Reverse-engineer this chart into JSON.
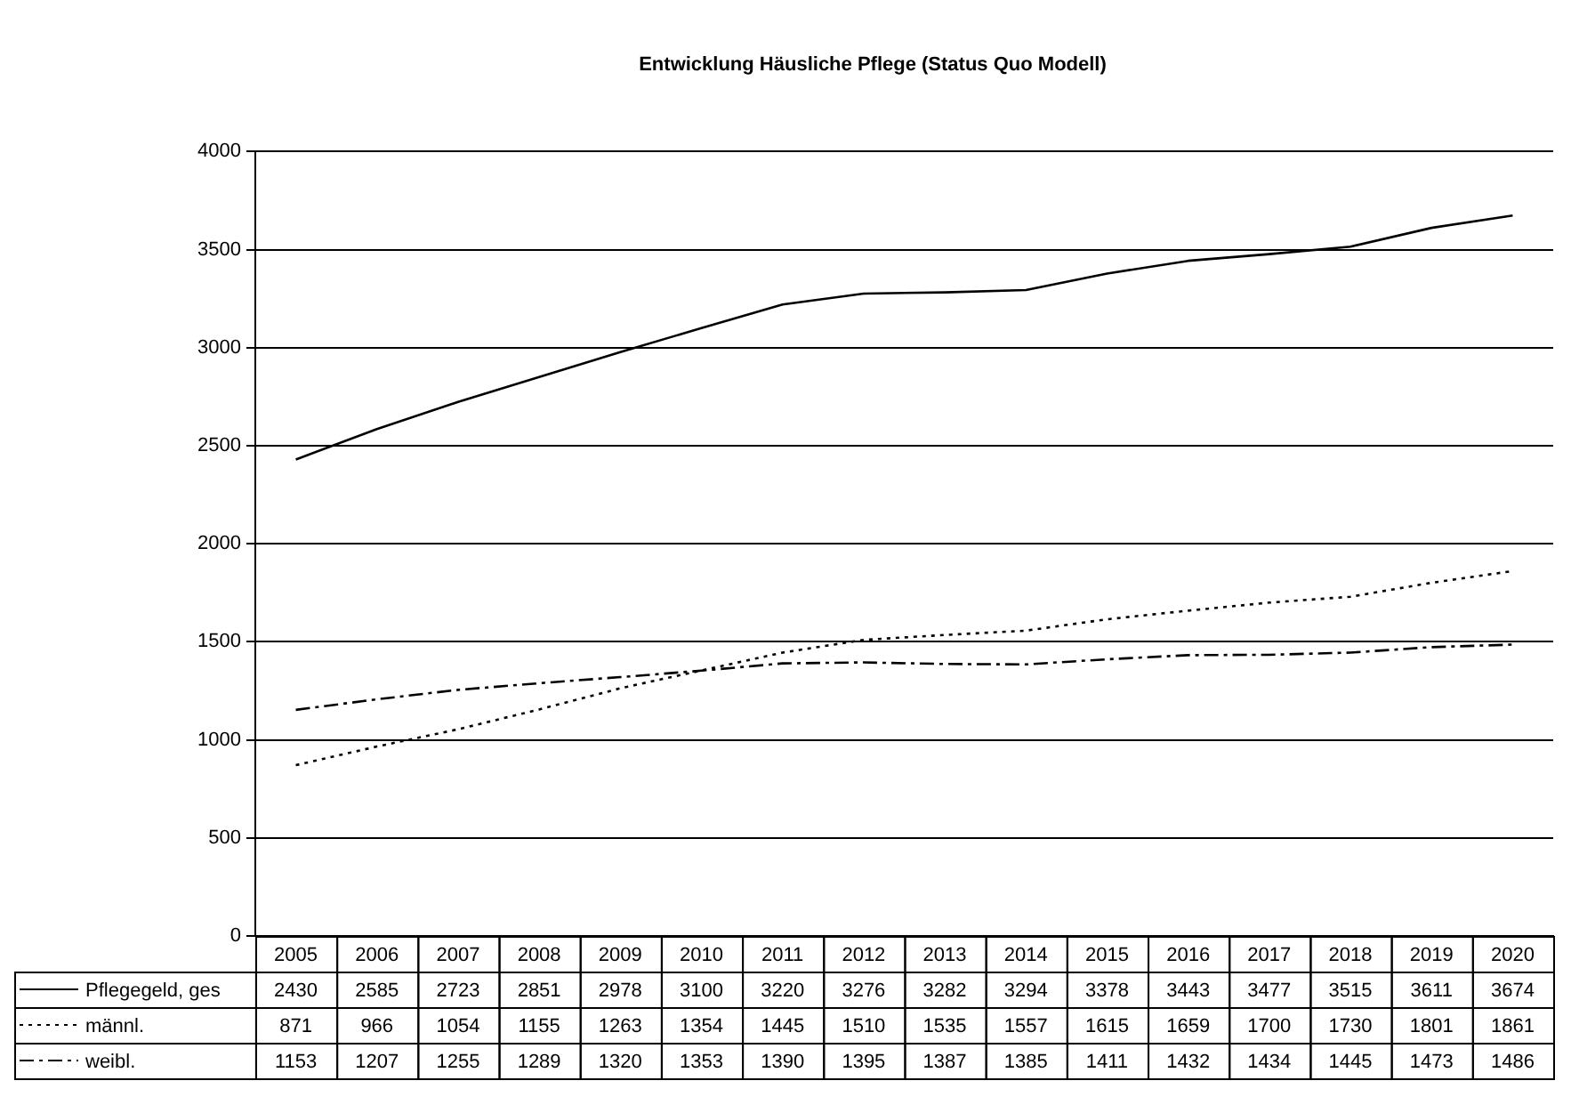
{
  "chart_data": {
    "type": "line",
    "title": "Entwicklung Häusliche Pflege (Status Quo Modell)",
    "categories": [
      "2005",
      "2006",
      "2007",
      "2008",
      "2009",
      "2010",
      "2011",
      "2012",
      "2013",
      "2014",
      "2015",
      "2016",
      "2017",
      "2018",
      "2019",
      "2020"
    ],
    "series": [
      {
        "name": "Pflegegeld, ges",
        "color": "#000000",
        "line_style": "solid",
        "values": [
          2430,
          2585,
          2723,
          2851,
          2978,
          3100,
          3220,
          3276,
          3282,
          3294,
          3378,
          3443,
          3477,
          3515,
          3611,
          3674
        ]
      },
      {
        "name": "männl.",
        "color": "#000000",
        "line_style": "dotted",
        "values": [
          871,
          966,
          1054,
          1155,
          1263,
          1354,
          1445,
          1510,
          1535,
          1557,
          1615,
          1659,
          1700,
          1730,
          1801,
          1861
        ]
      },
      {
        "name": "weibl.",
        "color": "#000000",
        "line_style": "dashed",
        "values": [
          1153,
          1207,
          1255,
          1289,
          1320,
          1353,
          1390,
          1395,
          1387,
          1385,
          1411,
          1432,
          1434,
          1445,
          1473,
          1486
        ]
      }
    ],
    "ylim": [
      0,
      4000
    ],
    "yticks": [
      0,
      500,
      1000,
      1500,
      2000,
      2500,
      3000,
      3500,
      4000
    ],
    "grid": "y",
    "legend": "bottom",
    "data_labels": true,
    "marker": "none"
  }
}
